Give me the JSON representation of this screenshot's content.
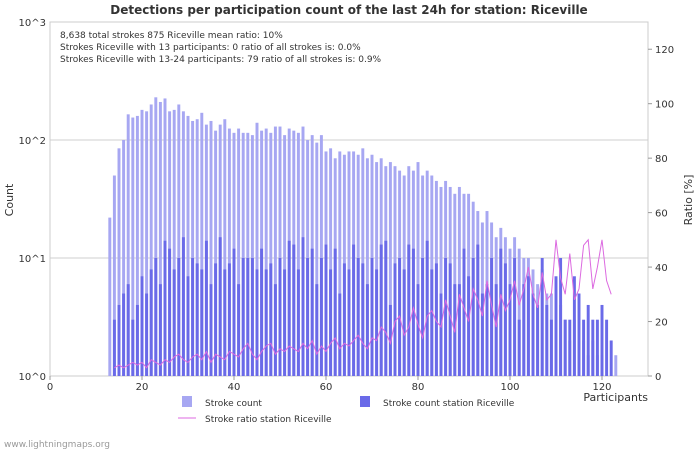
{
  "chart_data": {
    "type": "bar",
    "title": "Detections per participation count of the last 24h for station: Riceville",
    "xlabel": "Participants",
    "ylabel": "Count",
    "y2label": "Ratio [%]",
    "x_range": [
      0,
      130
    ],
    "x_ticks": [
      0,
      20,
      40,
      60,
      80,
      100,
      120
    ],
    "y_log_range": [
      1,
      1000
    ],
    "y_ticks": [
      {
        "value": 1,
        "label": "10^0"
      },
      {
        "value": 10,
        "label": "10^1"
      },
      {
        "value": 100,
        "label": "10^2"
      },
      {
        "value": 1000,
        "label": "10^3"
      }
    ],
    "y2_range": [
      0,
      130
    ],
    "y2_ticks": [
      0,
      20,
      40,
      60,
      80,
      100,
      120
    ],
    "stats_lines": [
      "8,638 total strokes      875 Riceville      mean ratio: 10%",
      "Strokes Riceville with 13 participants: 0      ratio of all strokes is: 0.0%",
      "Strokes Riceville with 13-24 participants: 79      ratio of all strokes is: 0.9%"
    ],
    "legend": [
      {
        "key": "total",
        "label": "Stroke count",
        "color": "#a7a7f2"
      },
      {
        "key": "station",
        "label": "Stroke count station Riceville",
        "color": "#6a6ae8"
      },
      {
        "key": "ratio",
        "label": "Stroke ratio station Riceville",
        "color": "#dc6ae0"
      }
    ],
    "series": [
      {
        "name": "Stroke count",
        "x": [
          13,
          14,
          15,
          16,
          17,
          18,
          19,
          20,
          21,
          22,
          23,
          24,
          25,
          26,
          27,
          28,
          29,
          30,
          31,
          32,
          33,
          34,
          35,
          36,
          37,
          38,
          39,
          40,
          41,
          42,
          43,
          44,
          45,
          46,
          47,
          48,
          49,
          50,
          51,
          52,
          53,
          54,
          55,
          56,
          57,
          58,
          59,
          60,
          61,
          62,
          63,
          64,
          65,
          66,
          67,
          68,
          69,
          70,
          71,
          72,
          73,
          74,
          75,
          76,
          77,
          78,
          79,
          80,
          81,
          82,
          83,
          84,
          85,
          86,
          87,
          88,
          89,
          90,
          91,
          92,
          93,
          94,
          95,
          96,
          97,
          98,
          99,
          100,
          101,
          102,
          103,
          104,
          105,
          106,
          107,
          108,
          109,
          110,
          111,
          112,
          113,
          114,
          115,
          116,
          117,
          118,
          119,
          120,
          121,
          122,
          123,
          124,
          125,
          126,
          127,
          128,
          129
        ],
        "values": [
          22,
          50,
          85,
          100,
          165,
          155,
          160,
          180,
          175,
          200,
          230,
          210,
          225,
          175,
          180,
          200,
          175,
          160,
          145,
          150,
          170,
          135,
          145,
          120,
          135,
          150,
          125,
          115,
          125,
          115,
          115,
          110,
          140,
          120,
          125,
          115,
          130,
          130,
          110,
          125,
          120,
          115,
          130,
          100,
          110,
          95,
          110,
          80,
          85,
          70,
          80,
          75,
          80,
          80,
          75,
          85,
          70,
          75,
          65,
          70,
          60,
          65,
          60,
          55,
          50,
          60,
          55,
          65,
          50,
          55,
          50,
          45,
          40,
          45,
          40,
          35,
          40,
          35,
          35,
          30,
          25,
          20,
          25,
          20,
          15,
          18,
          15,
          12,
          15,
          12,
          10,
          10,
          8,
          6,
          8,
          5,
          5,
          3,
          4,
          3,
          2,
          3,
          2,
          2,
          1.5,
          2,
          1.5,
          1.5,
          1,
          1,
          1.5,
          1,
          1,
          1,
          1,
          1,
          1
        ]
      },
      {
        "name": "Stroke count station Riceville",
        "x": [
          14,
          15,
          16,
          17,
          18,
          19,
          20,
          21,
          22,
          23,
          24,
          25,
          26,
          27,
          28,
          29,
          30,
          31,
          32,
          33,
          34,
          35,
          36,
          37,
          38,
          39,
          40,
          41,
          42,
          43,
          44,
          45,
          46,
          47,
          48,
          49,
          50,
          51,
          52,
          53,
          54,
          55,
          56,
          57,
          58,
          59,
          60,
          61,
          62,
          63,
          64,
          65,
          66,
          67,
          68,
          69,
          70,
          71,
          72,
          73,
          74,
          75,
          76,
          77,
          78,
          79,
          80,
          81,
          82,
          83,
          84,
          85,
          86,
          87,
          88,
          89,
          90,
          91,
          92,
          93,
          94,
          95,
          96,
          97,
          98,
          99,
          100,
          101,
          102,
          103,
          104,
          105,
          106,
          107,
          108,
          109,
          110,
          111,
          112,
          113,
          114,
          115,
          116,
          117,
          118,
          119,
          120,
          121,
          122
        ],
        "values": [
          3,
          4,
          5,
          6,
          3,
          4,
          7,
          5,
          8,
          10,
          6,
          14,
          12,
          8,
          10,
          15,
          7,
          10,
          9,
          8,
          14,
          6,
          9,
          15,
          8,
          9,
          12,
          6,
          10,
          10,
          10,
          8,
          12,
          8,
          9,
          6,
          10,
          8,
          14,
          13,
          8,
          15,
          10,
          12,
          6,
          10,
          13,
          8,
          12,
          5,
          9,
          8,
          13,
          10,
          9,
          6,
          10,
          8,
          13,
          14,
          4,
          9,
          10,
          8,
          13,
          12,
          6,
          10,
          14,
          8,
          9,
          5,
          10,
          9,
          6,
          6,
          12,
          7,
          10,
          13,
          5,
          6,
          10,
          6,
          12,
          9,
          6,
          10,
          3,
          6,
          7,
          5,
          4,
          10,
          4,
          3,
          7,
          10,
          3,
          3,
          7,
          5,
          3,
          4,
          3,
          3,
          4,
          3,
          2
        ]
      },
      {
        "name": "Stroke ratio station Riceville",
        "x": [
          14,
          15,
          16,
          17,
          18,
          19,
          20,
          21,
          22,
          23,
          24,
          25,
          26,
          27,
          28,
          29,
          30,
          31,
          32,
          33,
          34,
          35,
          36,
          37,
          38,
          39,
          40,
          41,
          42,
          43,
          44,
          45,
          46,
          47,
          48,
          49,
          50,
          51,
          52,
          53,
          54,
          55,
          56,
          57,
          58,
          59,
          60,
          61,
          62,
          63,
          64,
          65,
          66,
          67,
          68,
          69,
          70,
          71,
          72,
          73,
          74,
          75,
          76,
          77,
          78,
          79,
          80,
          81,
          82,
          83,
          84,
          85,
          86,
          87,
          88,
          89,
          90,
          91,
          92,
          93,
          94,
          95,
          96,
          97,
          98,
          99,
          100,
          101,
          102,
          103,
          104,
          105,
          106,
          107,
          108,
          109,
          110,
          111,
          112,
          113,
          114,
          115,
          116,
          117,
          118,
          119,
          120,
          121,
          122
        ],
        "values": [
          3,
          4,
          3,
          4,
          5,
          4,
          5,
          3,
          6,
          5,
          4,
          6,
          5,
          7,
          8,
          6,
          5,
          7,
          8,
          6,
          9,
          5,
          8,
          7,
          6,
          9,
          8,
          7,
          10,
          12,
          8,
          6,
          9,
          11,
          12,
          8,
          10,
          9,
          11,
          10,
          9,
          12,
          10,
          13,
          8,
          11,
          9,
          12,
          14,
          10,
          12,
          11,
          13,
          15,
          12,
          10,
          14,
          13,
          18,
          16,
          12,
          20,
          22,
          15,
          18,
          25,
          19,
          14,
          22,
          24,
          20,
          18,
          28,
          22,
          16,
          30,
          25,
          20,
          32,
          28,
          22,
          35,
          26,
          18,
          30,
          24,
          28,
          35,
          26,
          32,
          40,
          30,
          25,
          38,
          28,
          30,
          50,
          36,
          30,
          45,
          28,
          32,
          48,
          50,
          32,
          40,
          50,
          35,
          30
        ]
      }
    ],
    "watermark": "www.lightningmaps.org"
  }
}
